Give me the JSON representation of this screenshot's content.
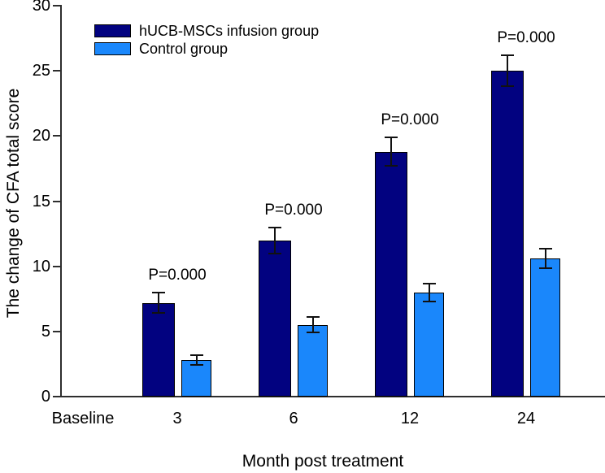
{
  "chart_data": {
    "type": "bar",
    "title": "",
    "xlabel": "Month post treatment",
    "ylabel": "The change of CFA total score",
    "categories": [
      "Baseline",
      "3",
      "6",
      "12",
      "24"
    ],
    "series": [
      {
        "name": "hUCB-MSCs infusion group",
        "color": "#020280",
        "values": [
          0,
          7.2,
          12.0,
          18.8,
          25.0
        ],
        "errors": [
          0,
          0.8,
          1.0,
          1.1,
          1.2
        ]
      },
      {
        "name": "Control group",
        "color": "#1a87fb",
        "values": [
          0,
          2.8,
          5.5,
          8.0,
          10.6
        ],
        "errors": [
          0,
          0.35,
          0.6,
          0.7,
          0.75
        ]
      }
    ],
    "annotations": [
      {
        "category": "3",
        "text": "P=0.000"
      },
      {
        "category": "6",
        "text": "P=0.000"
      },
      {
        "category": "12",
        "text": "P=0.000"
      },
      {
        "category": "24",
        "text": "P=0.000"
      }
    ],
    "ylim": [
      0,
      30
    ],
    "yticks": [
      0,
      5,
      10,
      15,
      20,
      25,
      30
    ],
    "legend_position": "top-left",
    "grid": false,
    "error_bar_color": "#111111",
    "axis_color": "#2e2e2e"
  }
}
